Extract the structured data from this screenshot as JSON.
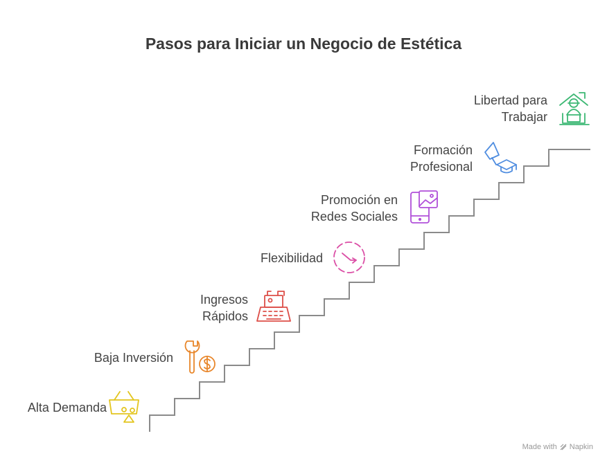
{
  "title": "Pasos para Iniciar un Negocio de Estética",
  "steps": [
    {
      "label": [
        "Alta Demanda"
      ],
      "icon": "basket-icon",
      "color": "#E3C51E"
    },
    {
      "label": [
        "Baja Inversión"
      ],
      "icon": "wrench-coin-icon",
      "color": "#E8862A"
    },
    {
      "label": [
        "Ingresos",
        "Rápidos"
      ],
      "icon": "cash-register-icon",
      "color": "#DD4E48"
    },
    {
      "label": [
        "Flexibilidad"
      ],
      "icon": "clock-arrow-icon",
      "color": "#DB4FA6"
    },
    {
      "label": [
        "Promoción en",
        "Redes Sociales"
      ],
      "icon": "phone-image-icon",
      "color": "#B150D9"
    },
    {
      "label": [
        "Formación",
        "Profesional"
      ],
      "icon": "graduation-megaphone-icon",
      "color": "#4F8DE0"
    },
    {
      "label": [
        "Libertad para",
        "Trabajar"
      ],
      "icon": "home-office-icon",
      "color": "#3DB874"
    }
  ],
  "footer": {
    "made_with": "Made with",
    "brand": "Napkin"
  }
}
